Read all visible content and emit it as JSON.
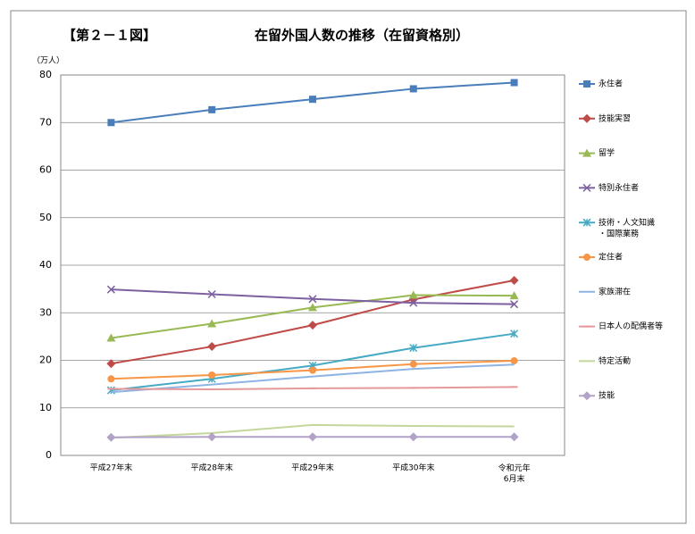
{
  "chart_data": {
    "type": "line",
    "figure_label": "【第２－１図】",
    "title": "在留外国人数の推移（在留資格別）",
    "y_unit": "（万人）",
    "categories": [
      "平成27年末",
      "平成28年末",
      "平成29年末",
      "平成30年末",
      "令和元年\n6月末"
    ],
    "ylim": [
      0,
      80
    ],
    "yticks": [
      0,
      10,
      20,
      30,
      40,
      50,
      60,
      70,
      80
    ],
    "grid": true,
    "legend": "right",
    "series": [
      {
        "name": "永住者",
        "color": "#4a7ebb",
        "marker": "square",
        "values": [
          70.0,
          72.7,
          74.9,
          77.1,
          78.4
        ]
      },
      {
        "name": "技能実習",
        "color": "#be4b48",
        "marker": "diamond",
        "values": [
          19.3,
          22.9,
          27.4,
          32.8,
          36.8
        ]
      },
      {
        "name": "留学",
        "color": "#98b954",
        "marker": "triangle",
        "values": [
          24.7,
          27.7,
          31.1,
          33.7,
          33.6
        ]
      },
      {
        "name": "特別永住者",
        "color": "#7d60a0",
        "marker": "x",
        "values": [
          34.9,
          33.9,
          32.9,
          32.1,
          31.8
        ]
      },
      {
        "name": "技術・人文知識\n・国際業務",
        "color": "#46aac5",
        "marker": "star",
        "values": [
          13.7,
          16.1,
          18.9,
          22.6,
          25.6
        ]
      },
      {
        "name": "定住者",
        "color": "#f79646",
        "marker": "circle",
        "values": [
          16.1,
          16.9,
          17.9,
          19.2,
          19.9
        ]
      },
      {
        "name": "家族滞在",
        "color": "#8eb4e3",
        "marker": "none",
        "values": [
          13.3,
          14.9,
          16.6,
          18.2,
          19.1
        ]
      },
      {
        "name": "日本人の配偶者等",
        "color": "#e6999a",
        "marker": "dash",
        "values": [
          14.0,
          13.9,
          14.1,
          14.2,
          14.4
        ]
      },
      {
        "name": "特定活動",
        "color": "#c3d69b",
        "marker": "none",
        "values": [
          3.7,
          4.7,
          6.4,
          6.2,
          6.1
        ]
      },
      {
        "name": "技能",
        "color": "#b3a2c7",
        "marker": "diamond",
        "values": [
          3.8,
          3.9,
          3.9,
          3.9,
          3.9
        ]
      }
    ]
  }
}
